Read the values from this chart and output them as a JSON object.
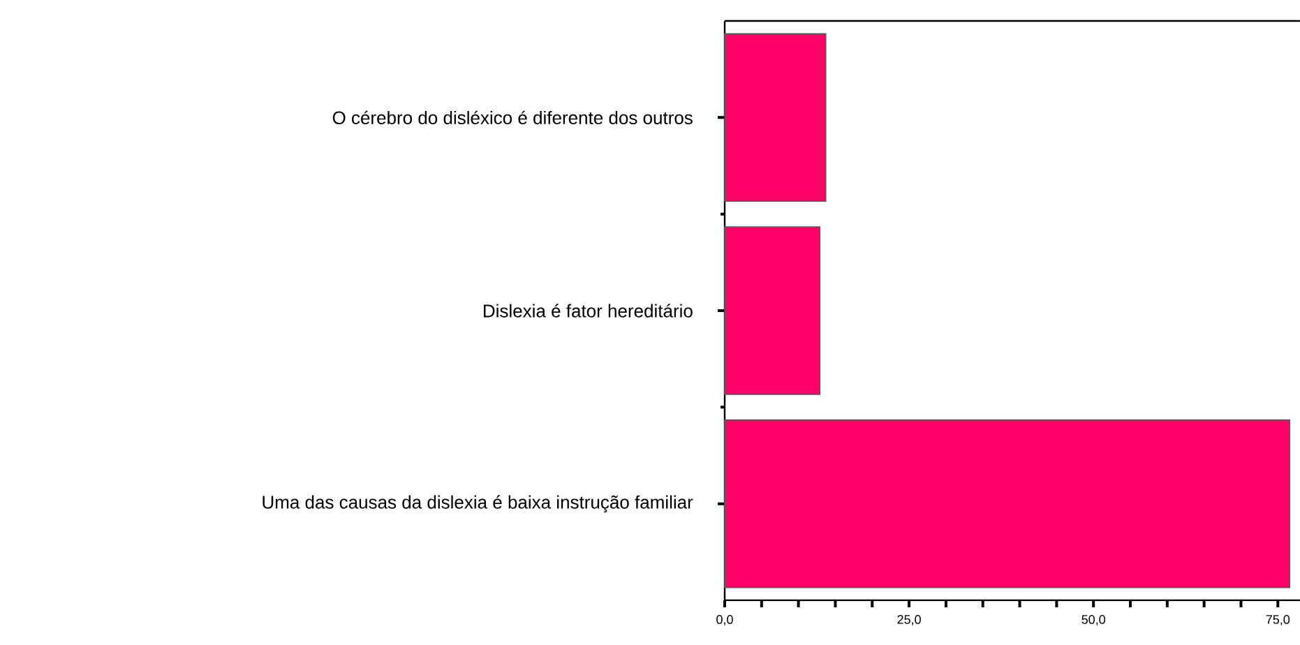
{
  "chart_data": {
    "type": "bar",
    "orientation": "horizontal",
    "categories": [
      "O cérebro do disléxico é diferente dos outros",
      "Dislexia é fator hereditário",
      "Uma das causas da dislexia é baixa instrução familiar"
    ],
    "values": [
      13.7,
      12.9,
      76.6
    ],
    "color": "#ff0066",
    "xlim": [
      0,
      78
    ],
    "xticks": [
      {
        "value": 0,
        "label": "0,0"
      },
      {
        "value": 5,
        "label": null
      },
      {
        "value": 10,
        "label": null
      },
      {
        "value": 15,
        "label": null
      },
      {
        "value": 20,
        "label": null
      },
      {
        "value": 25,
        "label": "25,0"
      },
      {
        "value": 30,
        "label": null
      },
      {
        "value": 35,
        "label": null
      },
      {
        "value": 40,
        "label": null
      },
      {
        "value": 45,
        "label": null
      },
      {
        "value": 50,
        "label": "50,0"
      },
      {
        "value": 55,
        "label": null
      },
      {
        "value": 60,
        "label": null
      },
      {
        "value": 65,
        "label": null
      },
      {
        "value": 70,
        "label": null
      },
      {
        "value": 75,
        "label": "75,0"
      }
    ]
  }
}
